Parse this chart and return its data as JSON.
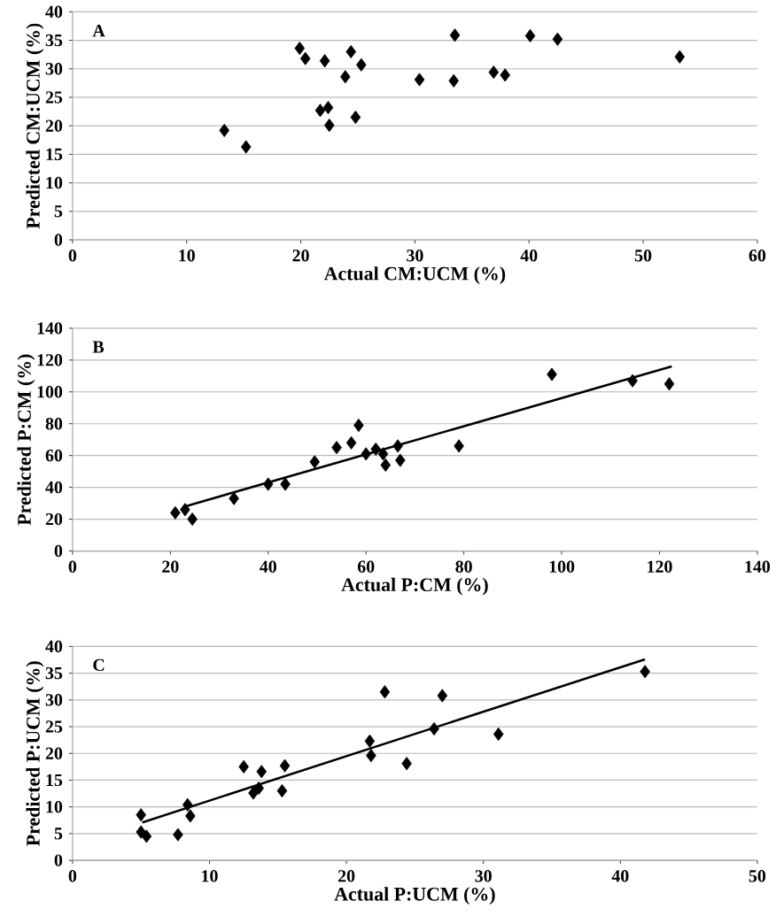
{
  "chart_data": [
    {
      "type": "scatter",
      "xlabel": "Actual CM:UCM (%)",
      "ylabel": "Predicted CM:UCM (%)",
      "annotations": [
        "A"
      ],
      "xlim": [
        0,
        60
      ],
      "ylim": [
        0,
        40
      ],
      "xticks": [
        0,
        10,
        20,
        30,
        40,
        50,
        60
      ],
      "yticks": [
        0,
        5,
        10,
        15,
        20,
        25,
        30,
        35,
        40
      ],
      "grid": "y",
      "series": [
        {
          "color": "#000000",
          "marker": "diamond",
          "x": [
            13.3,
            15.2,
            19.9,
            20.4,
            22.1,
            21.7,
            22.4,
            22.5,
            23.9,
            24.4,
            25.3,
            24.8,
            30.4,
            33.5,
            33.4,
            36.9,
            37.9,
            40.1,
            42.5,
            53.2
          ],
          "values": [
            19.2,
            16.3,
            33.6,
            31.8,
            31.4,
            22.7,
            23.2,
            20.1,
            28.6,
            33.0,
            30.7,
            21.5,
            28.1,
            35.9,
            27.9,
            29.4,
            28.9,
            35.8,
            35.2,
            32.1
          ]
        }
      ]
    },
    {
      "type": "scatter",
      "xlabel": "Actual P:CM (%)",
      "ylabel": "Predicted P:CM (%)",
      "annotations": [
        "B"
      ],
      "xlim": [
        0,
        140
      ],
      "ylim": [
        0,
        140
      ],
      "xticks": [
        0,
        20,
        40,
        60,
        80,
        100,
        120,
        140
      ],
      "yticks": [
        0,
        20,
        40,
        60,
        80,
        100,
        120,
        140
      ],
      "grid": "y",
      "series": [
        {
          "color": "#000000",
          "marker": "diamond",
          "x": [
            21,
            23,
            24.5,
            33,
            40,
            43.5,
            49.5,
            54,
            57,
            58.5,
            60,
            62,
            63.5,
            64,
            66.5,
            67,
            79,
            98,
            114.5,
            122
          ],
          "values": [
            24,
            26,
            20,
            33,
            42,
            42,
            56,
            65,
            68,
            79,
            61,
            64,
            61,
            54,
            66,
            57,
            66,
            111,
            107,
            105
          ]
        },
        {
          "type": "line",
          "color": "#000000",
          "marker": "none",
          "x": [
            23,
            122.5
          ],
          "values": [
            28,
            116
          ]
        }
      ]
    },
    {
      "type": "scatter",
      "xlabel": "Actual P:UCM (%)",
      "ylabel": "Predicted P:UCM (%)",
      "annotations": [
        "C"
      ],
      "xlim": [
        0,
        50
      ],
      "ylim": [
        0,
        40
      ],
      "xticks": [
        0,
        10,
        20,
        30,
        40,
        50
      ],
      "yticks": [
        0,
        5,
        10,
        15,
        20,
        25,
        30,
        35,
        40
      ],
      "grid": "y",
      "series": [
        {
          "color": "#000000",
          "marker": "diamond",
          "x": [
            5.0,
            5.0,
            5.4,
            7.7,
            8.4,
            8.6,
            12.5,
            13.2,
            13.6,
            13.8,
            15.3,
            15.5,
            21.7,
            21.8,
            22.8,
            24.4,
            26.4,
            27.0,
            31.1,
            41.8
          ],
          "values": [
            8.5,
            5.3,
            4.5,
            4.8,
            10.4,
            8.3,
            17.5,
            12.6,
            13.5,
            16.6,
            13.0,
            17.7,
            22.3,
            19.6,
            31.5,
            18.1,
            24.6,
            30.8,
            23.6,
            35.3
          ]
        },
        {
          "type": "line",
          "color": "#000000",
          "marker": "none",
          "x": [
            5.1,
            41.8
          ],
          "values": [
            7.1,
            37.6
          ]
        }
      ]
    }
  ]
}
